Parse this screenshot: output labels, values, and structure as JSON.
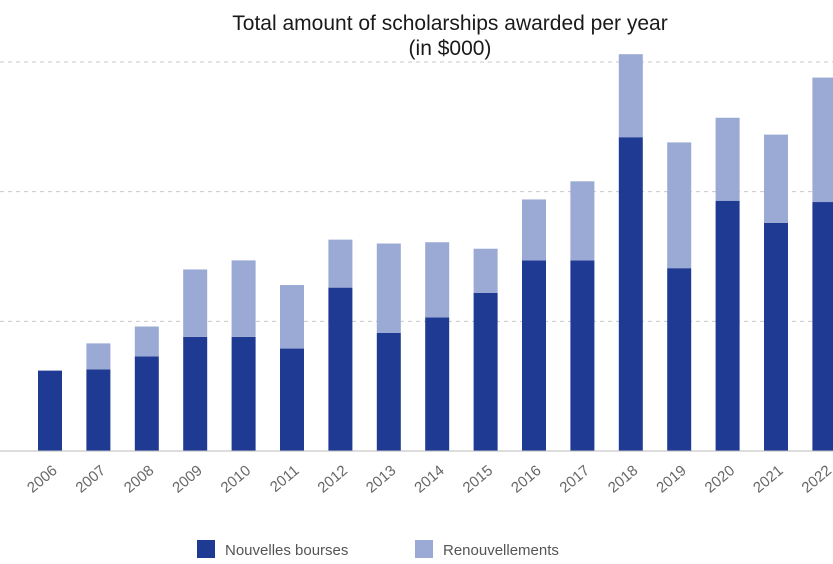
{
  "chart_data": {
    "type": "bar",
    "stacked": true,
    "title_lines": [
      "Total amount of scholarships awarded per year",
      "(in $000)"
    ],
    "categories": [
      "2006",
      "2007",
      "2008",
      "2009",
      "2010",
      "2011",
      "2012",
      "2013",
      "2014",
      "2015",
      "2016",
      "2017",
      "2018",
      "2019",
      "2020",
      "2021",
      "2022"
    ],
    "series": [
      {
        "name": "Nouvelles bourses",
        "color": "#1f3a93",
        "values": [
          62,
          63,
          73,
          88,
          88,
          79,
          126,
          91,
          103,
          122,
          147,
          147,
          242,
          141,
          193,
          176,
          192
        ]
      },
      {
        "name": "Renouvellements",
        "color": "#9aaad4",
        "values": [
          0,
          20,
          23,
          52,
          59,
          49,
          37,
          69,
          58,
          34,
          47,
          61,
          64,
          97,
          64,
          68,
          96
        ]
      }
    ],
    "ylim": [
      0,
      300
    ],
    "y_gridlines": [
      100,
      200,
      300
    ],
    "grid": "horizontal dashed",
    "legend_position": "bottom"
  }
}
